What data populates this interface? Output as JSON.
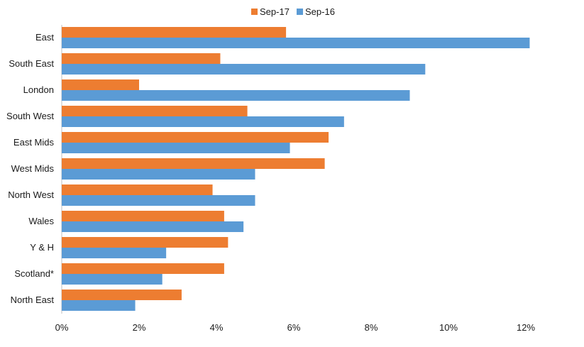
{
  "chart_data": {
    "type": "bar",
    "orientation": "horizontal",
    "categories": [
      "East",
      "South East",
      "London",
      "South West",
      "East Mids",
      "West Mids",
      "North West",
      "Wales",
      "Y & H",
      "Scotland*",
      "North East"
    ],
    "series": [
      {
        "name": "Sep-17",
        "color": "#ed7d31",
        "values": [
          5.8,
          4.1,
          2.0,
          4.8,
          6.9,
          6.8,
          3.9,
          4.2,
          4.3,
          4.2,
          3.1
        ]
      },
      {
        "name": "Sep-16",
        "color": "#5b9bd5",
        "values": [
          12.1,
          9.4,
          9.0,
          7.3,
          5.9,
          5.0,
          5.0,
          4.7,
          2.7,
          2.6,
          1.9
        ]
      }
    ],
    "xlim": [
      0,
      12
    ],
    "xticks": [
      0,
      2,
      4,
      6,
      8,
      10,
      12
    ],
    "xtick_labels": [
      "0%",
      "2%",
      "4%",
      "6%",
      "8%",
      "10%",
      "12%"
    ],
    "title": "",
    "xlabel": "",
    "ylabel": "",
    "grid": false,
    "legend_position": "top-center"
  }
}
